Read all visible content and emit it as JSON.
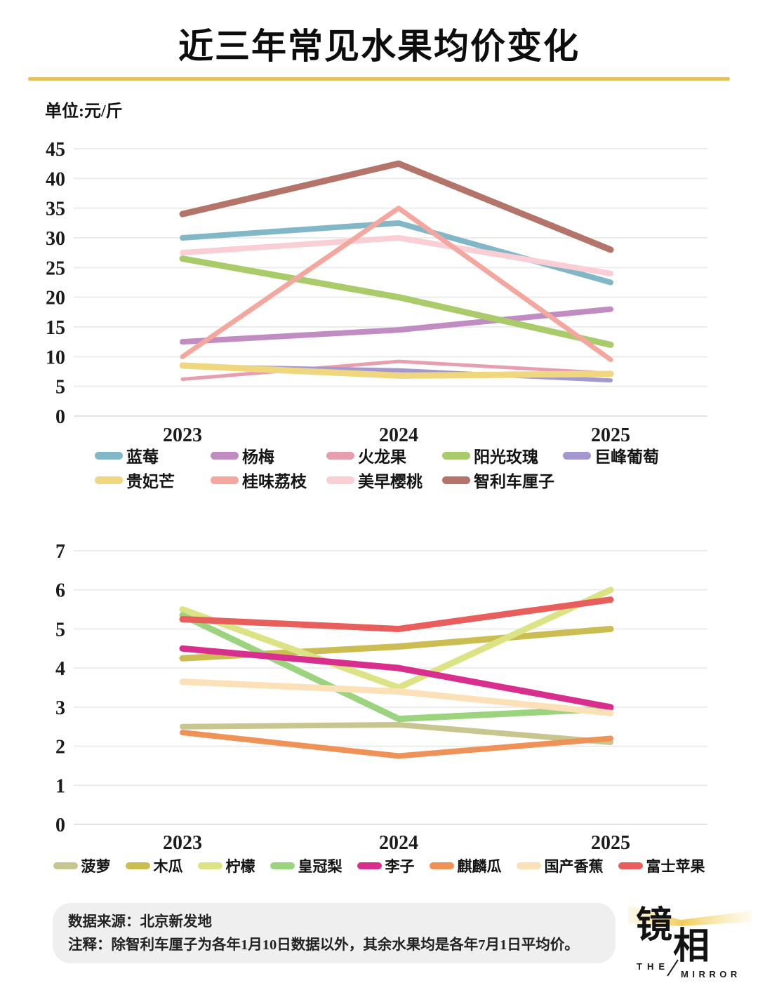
{
  "header": {
    "title": "近三年常见水果均价变化",
    "unit_label": "单位:元/斤",
    "accent_color": "#E4C35E"
  },
  "chart_data": [
    {
      "id": "high-price-fruits",
      "type": "line",
      "x": [
        "2023",
        "2024",
        "2025"
      ],
      "ylabel": "",
      "xlabel": "",
      "ylim": [
        0,
        45
      ],
      "ytick_step": 5,
      "grid": true,
      "legend_position": "bottom",
      "legend_split": 5,
      "series": [
        {
          "name": "蓝莓",
          "color": "#82B7C7",
          "w": 8,
          "z": 1,
          "values": [
            30,
            32.5,
            22.5
          ]
        },
        {
          "name": "杨梅",
          "color": "#C18CC1",
          "w": 8,
          "z": 2,
          "values": [
            12.5,
            14.5,
            18
          ]
        },
        {
          "name": "火龙果",
          "color": "#E79FB0",
          "w": 5,
          "z": 3,
          "values": [
            6.2,
            9.2,
            7.2
          ]
        },
        {
          "name": "阳光玫瑰",
          "color": "#A9CB69",
          "w": 9,
          "z": 4,
          "values": [
            26.5,
            20,
            12
          ]
        },
        {
          "name": "巨峰葡萄",
          "color": "#A498CE",
          "w": 6,
          "z": 5,
          "values": [
            8.4,
            7.7,
            6
          ]
        },
        {
          "name": "贵妃芒",
          "color": "#EFD77F",
          "w": 9,
          "z": 6,
          "values": [
            8.5,
            6.8,
            7.1
          ]
        },
        {
          "name": "桂味荔枝",
          "color": "#F3A79F",
          "w": 7,
          "z": 8,
          "values": [
            10,
            35,
            9.5
          ]
        },
        {
          "name": "美早樱桃",
          "color": "#F9CED4",
          "w": 8,
          "z": 7,
          "values": [
            27.5,
            30,
            24
          ]
        },
        {
          "name": "智利车厘子",
          "color": "#B4746A",
          "w": 9,
          "z": 9,
          "values": [
            34,
            42.5,
            28
          ]
        }
      ]
    },
    {
      "id": "low-price-fruits",
      "type": "line",
      "x": [
        "2023",
        "2024",
        "2025"
      ],
      "ylabel": "",
      "xlabel": "",
      "ylim": [
        0,
        7
      ],
      "ytick_step": 1,
      "grid": true,
      "legend_position": "bottom",
      "legend_split": 8,
      "series": [
        {
          "name": "菠萝",
          "color": "#C8C690",
          "w": 8,
          "z": 1,
          "values": [
            2.5,
            2.55,
            2.1
          ]
        },
        {
          "name": "木瓜",
          "color": "#CBBD51",
          "w": 9,
          "z": 2,
          "values": [
            4.25,
            4.55,
            5.0
          ]
        },
        {
          "name": "柠檬",
          "color": "#DCE385",
          "w": 9,
          "z": 3,
          "values": [
            5.5,
            3.5,
            6.0
          ]
        },
        {
          "name": "皇冠梨",
          "color": "#9CD37F",
          "w": 9,
          "z": 4,
          "values": [
            5.35,
            2.7,
            2.96
          ]
        },
        {
          "name": "李子",
          "color": "#D82F8E",
          "w": 9,
          "z": 5,
          "values": [
            4.5,
            4.0,
            3.0
          ]
        },
        {
          "name": "麒麟瓜",
          "color": "#EF9257",
          "w": 8,
          "z": 6,
          "values": [
            2.35,
            1.75,
            2.2
          ]
        },
        {
          "name": "国产香蕉",
          "color": "#FBE0B8",
          "w": 9,
          "z": 7,
          "values": [
            3.65,
            3.4,
            2.85
          ]
        },
        {
          "name": "富士苹果",
          "color": "#E85E5C",
          "w": 9,
          "z": 8,
          "values": [
            5.25,
            5.0,
            5.75
          ]
        }
      ]
    }
  ],
  "footer": {
    "source_line": "数据来源：北京新发地",
    "note_line": "注释：除智利车厘子为各年1月10日数据以外，其余水果均是各年7月1日平均价。"
  },
  "logo": {
    "char_top": "镜",
    "char_bottom": "相",
    "word_the": "THE",
    "word_mirror": "MIRROR",
    "beam_color": "#F2C94C"
  }
}
